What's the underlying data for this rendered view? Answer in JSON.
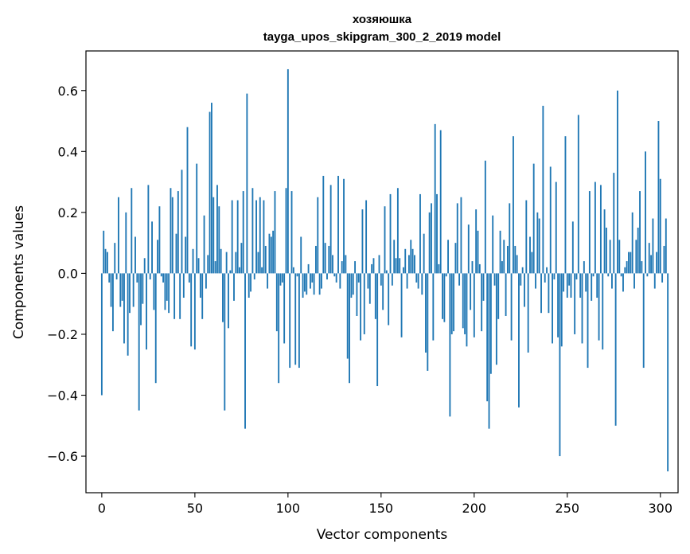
{
  "chart_data": {
    "type": "bar",
    "title": "хозяюшка",
    "subtitle": "tayga_upos_skipgram_300_2_2019 model",
    "xlabel": "Vector components",
    "ylabel": "Components values",
    "xlim": [
      -8.5,
      309.5
    ],
    "ylim": [
      -0.72,
      0.73
    ],
    "xticks": [
      0,
      50,
      100,
      150,
      200,
      250,
      300
    ],
    "yticks": [
      -0.6,
      -0.4,
      -0.2,
      0.0,
      0.2,
      0.4,
      0.6
    ],
    "ytick_labels": [
      "−0.6",
      "−0.4",
      "−0.2",
      "0.0",
      "0.2",
      "0.4",
      "0.6"
    ],
    "bar_color": "#1f77b4",
    "values": [
      -0.4,
      0.14,
      0.08,
      0.07,
      -0.03,
      -0.11,
      -0.19,
      0.1,
      -0.02,
      0.25,
      -0.11,
      -0.09,
      -0.23,
      0.2,
      -0.27,
      -0.13,
      0.28,
      -0.11,
      0.12,
      -0.03,
      -0.45,
      -0.17,
      -0.1,
      0.05,
      -0.25,
      0.29,
      -0.02,
      0.17,
      -0.12,
      -0.36,
      0.11,
      0.22,
      -0.01,
      -0.03,
      -0.12,
      -0.09,
      -0.13,
      0.28,
      0.25,
      -0.15,
      0.13,
      0.27,
      -0.15,
      0.34,
      -0.08,
      0.12,
      0.48,
      -0.03,
      -0.24,
      0.08,
      -0.25,
      0.36,
      0.05,
      -0.08,
      -0.15,
      0.19,
      -0.05,
      0.06,
      0.53,
      0.56,
      0.25,
      0.04,
      0.29,
      0.22,
      0.08,
      -0.16,
      -0.45,
      0.07,
      -0.18,
      0.01,
      0.24,
      -0.09,
      0.07,
      0.24,
      0.02,
      0.1,
      0.27,
      -0.51,
      0.59,
      -0.08,
      -0.06,
      0.28,
      -0.02,
      0.24,
      0.07,
      0.25,
      0.02,
      0.24,
      0.09,
      -0.05,
      0.13,
      0.12,
      0.14,
      0.27,
      -0.19,
      -0.36,
      -0.04,
      -0.03,
      -0.23,
      0.28,
      0.67,
      -0.31,
      0.27,
      0.02,
      -0.3,
      -0.01,
      -0.31,
      0.12,
      -0.08,
      -0.06,
      -0.07,
      0.03,
      -0.05,
      -0.03,
      -0.07,
      0.09,
      0.25,
      -0.07,
      -0.05,
      0.32,
      0.1,
      -0.02,
      0.09,
      0.29,
      0.06,
      -0.01,
      -0.03,
      0.32,
      -0.05,
      0.04,
      0.31,
      0.06,
      -0.28,
      -0.36,
      -0.08,
      -0.07,
      0.04,
      -0.14,
      -0.03,
      -0.22,
      0.21,
      -0.2,
      0.24,
      -0.05,
      -0.1,
      0.03,
      0.05,
      -0.15,
      -0.37,
      0.06,
      -0.04,
      -0.12,
      0.22,
      0.01,
      -0.17,
      0.26,
      -0.04,
      0.11,
      0.05,
      0.28,
      0.05,
      -0.21,
      0.02,
      0.08,
      -0.05,
      0.06,
      0.11,
      0.08,
      0.06,
      -0.03,
      -0.05,
      0.26,
      -0.07,
      0.13,
      -0.26,
      -0.32,
      0.2,
      0.23,
      -0.22,
      0.49,
      0.26,
      0.03,
      0.47,
      -0.15,
      -0.16,
      -0.01,
      0.11,
      -0.47,
      -0.2,
      -0.19,
      0.1,
      0.23,
      -0.04,
      0.25,
      -0.18,
      -0.2,
      -0.24,
      0.16,
      -0.12,
      0.04,
      -0.21,
      0.21,
      0.14,
      0.03,
      -0.19,
      -0.09,
      0.37,
      -0.42,
      -0.51,
      -0.33,
      0.19,
      -0.04,
      -0.3,
      -0.15,
      0.14,
      0.04,
      0.11,
      -0.14,
      0.09,
      0.23,
      -0.22,
      0.45,
      0.09,
      0.06,
      -0.44,
      -0.04,
      0.02,
      -0.11,
      0.24,
      -0.26,
      0.12,
      0.07,
      0.36,
      -0.05,
      0.2,
      0.18,
      -0.13,
      0.55,
      -0.03,
      0.02,
      -0.13,
      0.35,
      -0.23,
      -0.02,
      0.3,
      -0.21,
      -0.6,
      -0.24,
      -0.06,
      0.45,
      -0.08,
      -0.04,
      -0.08,
      0.17,
      -0.2,
      -0.02,
      0.52,
      -0.08,
      -0.23,
      0.04,
      -0.06,
      -0.31,
      0.27,
      -0.09,
      -0.01,
      0.3,
      -0.08,
      -0.22,
      0.29,
      -0.25,
      0.21,
      0.15,
      -0.01,
      0.11,
      -0.05,
      0.33,
      -0.5,
      0.6,
      0.11,
      -0.01,
      -0.06,
      0.02,
      0.04,
      0.07,
      0.07,
      0.2,
      -0.05,
      0.11,
      0.15,
      0.27,
      0.04,
      -0.31,
      0.4,
      -0.01,
      0.1,
      0.06,
      0.18,
      -0.05,
      0.07,
      0.5,
      0.31,
      -0.03,
      0.09,
      0.18,
      -0.65
    ]
  }
}
